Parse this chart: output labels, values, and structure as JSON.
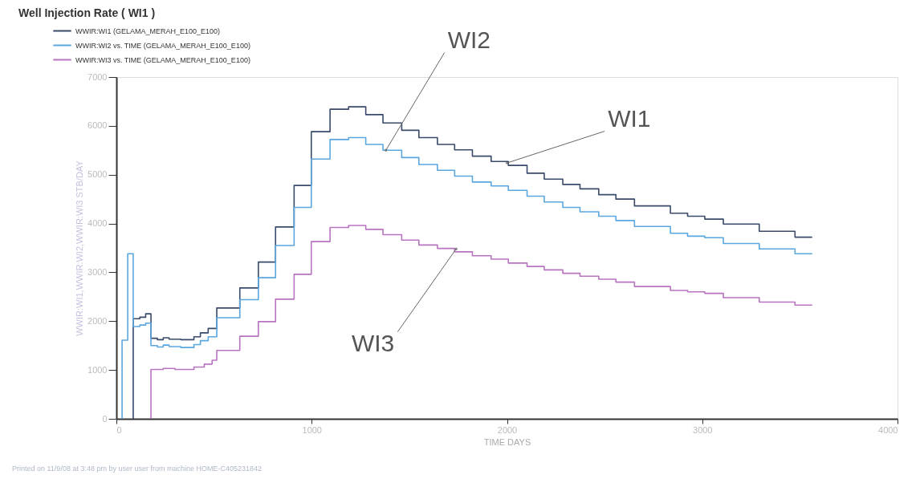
{
  "chart_data": {
    "type": "step",
    "title": "Well Injection Rate ( WI1  )",
    "xlabel": "TIME  DAYS",
    "ylabel": "WWIR:WI1,WWIR:WI2,WWIR:WI3   STB/DAY",
    "xlim": [
      0,
      4000
    ],
    "xticks": [
      0,
      1000,
      2000,
      3000,
      4000
    ],
    "ylim": [
      0,
      7000
    ],
    "yticks": [
      0,
      1000,
      2000,
      3000,
      4000,
      5000,
      6000,
      7000
    ],
    "grid": false,
    "legend": "top left",
    "series": [
      {
        "name": "WWIR:WI1 (GELAMA_MERAH_E100_E100)",
        "color": "#3a4a6b",
        "x": [
          86,
          86,
          120,
          150,
          177,
          210,
          240,
          270,
          330,
          397,
          430,
          470,
          514,
          632,
          727,
          815,
          910,
          998,
          1094,
          1189,
          1277,
          1365,
          1461,
          1549,
          1644,
          1732,
          1823,
          1919,
          2007,
          2103,
          2191,
          2286,
          2374,
          2470,
          2558,
          2653,
          2837,
          2925,
          3013,
          3108,
          3292,
          3475,
          3563
        ],
        "values": [
          0,
          2050,
          2080,
          2150,
          1650,
          1620,
          1660,
          1630,
          1620,
          1680,
          1760,
          1850,
          2270,
          2680,
          3210,
          3930,
          4780,
          5880,
          6340,
          6390,
          6230,
          6060,
          5910,
          5760,
          5620,
          5510,
          5380,
          5270,
          5190,
          5030,
          4910,
          4800,
          4710,
          4590,
          4500,
          4360,
          4210,
          4150,
          4090,
          3990,
          3840,
          3720,
          3720
        ]
      },
      {
        "name": "WWIR:WI2 vs. TIME (GELAMA_MERAH_E100_E100)",
        "color": "#5aa7e0",
        "x": [
          29,
          29,
          58,
          86,
          120,
          150,
          177,
          210,
          240,
          270,
          330,
          397,
          430,
          470,
          514,
          632,
          727,
          815,
          910,
          998,
          1094,
          1189,
          1277,
          1365,
          1461,
          1549,
          1644,
          1732,
          1823,
          1919,
          2007,
          2103,
          2191,
          2286,
          2374,
          2470,
          2558,
          2653,
          2837,
          2925,
          3013,
          3108,
          3292,
          3475,
          3563
        ],
        "values": [
          0,
          1610,
          3380,
          1890,
          1920,
          1960,
          1500,
          1470,
          1510,
          1480,
          1460,
          1520,
          1600,
          1680,
          2070,
          2440,
          2890,
          3550,
          4330,
          5320,
          5720,
          5760,
          5620,
          5500,
          5350,
          5210,
          5090,
          4970,
          4850,
          4770,
          4680,
          4560,
          4440,
          4330,
          4240,
          4150,
          4060,
          3940,
          3800,
          3740,
          3710,
          3590,
          3480,
          3380,
          3380
        ]
      },
      {
        "name": "WWIR:WI3 vs. TIME (GELAMA_MERAH_E100_E100)",
        "color": "#b874c0",
        "x": [
          177,
          177,
          240,
          300,
          397,
          450,
          490,
          514,
          632,
          727,
          815,
          910,
          998,
          1094,
          1189,
          1277,
          1365,
          1461,
          1549,
          1644,
          1732,
          1823,
          1919,
          2007,
          2103,
          2191,
          2286,
          2374,
          2470,
          2558,
          2653,
          2837,
          2925,
          3013,
          3108,
          3292,
          3475,
          3563
        ],
        "values": [
          0,
          1010,
          1030,
          1010,
          1060,
          1120,
          1200,
          1400,
          1690,
          1990,
          2450,
          2960,
          3630,
          3920,
          3960,
          3880,
          3770,
          3660,
          3560,
          3490,
          3420,
          3340,
          3270,
          3190,
          3120,
          3050,
          2980,
          2920,
          2860,
          2800,
          2710,
          2630,
          2600,
          2570,
          2480,
          2390,
          2330,
          2330
        ]
      }
    ],
    "annotations": [
      {
        "text": "WI2",
        "x": 1380,
        "y": 5500
      },
      {
        "text": "WI1",
        "x": 2000,
        "y": 5240
      },
      {
        "text": "WI3",
        "x": 1740,
        "y": 3480
      },
      "Printed on 11/9/08 at 3:48 pm by user user from machine HOME-C405231842"
    ]
  }
}
